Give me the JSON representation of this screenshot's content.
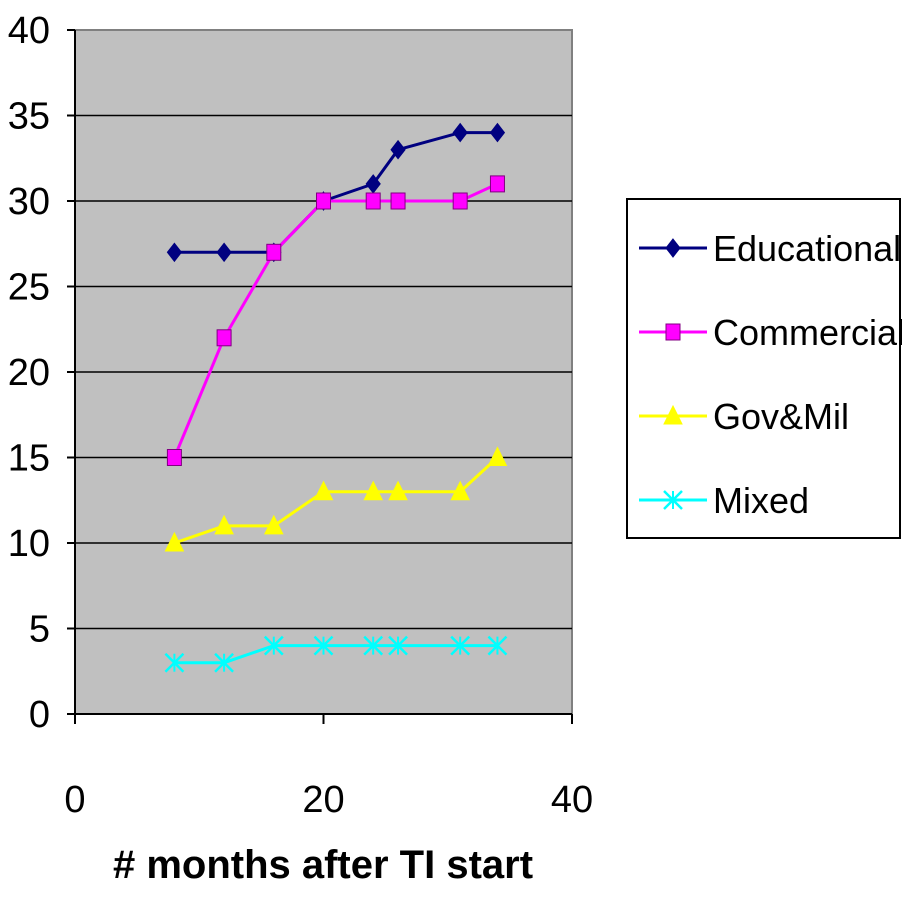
{
  "chart_data": {
    "type": "line",
    "title": "",
    "xlabel": "# months after TI start",
    "ylabel": "",
    "xlim": [
      0,
      40
    ],
    "ylim": [
      0,
      40
    ],
    "x_ticks": [
      0,
      20,
      40
    ],
    "y_ticks": [
      0,
      5,
      10,
      15,
      20,
      25,
      30,
      35,
      40
    ],
    "grid": "horizontal major gridlines",
    "plot_background": "#c0c0c0",
    "legend_position": "right",
    "series": [
      {
        "name": "Educational",
        "color": "#000080",
        "marker": "diamond",
        "x": [
          8,
          12,
          16,
          20,
          24,
          26,
          31,
          34
        ],
        "values": [
          27,
          27,
          27,
          30,
          31,
          33,
          34,
          34
        ]
      },
      {
        "name": "Commercial",
        "color": "#ff00ff",
        "marker": "square",
        "x": [
          8,
          12,
          16,
          20,
          24,
          26,
          31,
          34
        ],
        "values": [
          15,
          22,
          27,
          30,
          30,
          30,
          30,
          31
        ]
      },
      {
        "name": "Gov&Mil",
        "color": "#ffff00",
        "marker": "triangle",
        "x": [
          8,
          12,
          16,
          20,
          24,
          26,
          31,
          34
        ],
        "values": [
          10,
          11,
          11,
          13,
          13,
          13,
          13,
          15
        ]
      },
      {
        "name": "Mixed",
        "color": "#00ffff",
        "marker": "x",
        "x": [
          8,
          12,
          16,
          20,
          24,
          26,
          31,
          34
        ],
        "values": [
          3,
          3,
          4,
          4,
          4,
          4,
          4,
          4
        ]
      }
    ]
  }
}
